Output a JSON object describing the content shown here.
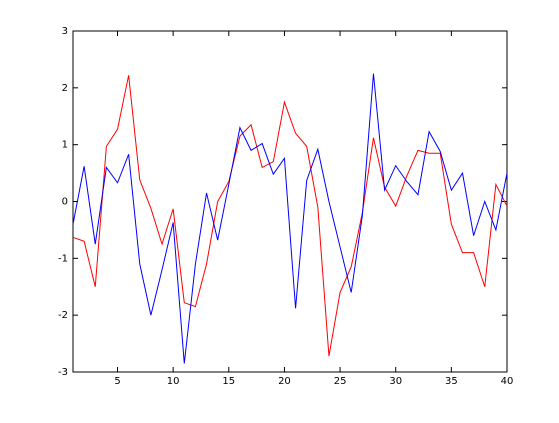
{
  "chart_data": {
    "type": "line",
    "x": [
      1,
      2,
      3,
      4,
      5,
      6,
      7,
      8,
      9,
      10,
      11,
      12,
      13,
      14,
      15,
      16,
      17,
      18,
      19,
      20,
      21,
      22,
      23,
      24,
      25,
      26,
      27,
      28,
      29,
      30,
      31,
      32,
      33,
      34,
      35,
      36,
      37,
      38,
      39,
      40
    ],
    "series": [
      {
        "color": "#ff0000",
        "values": [
          -0.63,
          -0.7,
          -1.5,
          0.97,
          1.27,
          2.22,
          0.38,
          -0.12,
          -0.75,
          -0.13,
          -1.78,
          -1.85,
          -1.1,
          0.0,
          0.35,
          1.15,
          1.35,
          0.6,
          0.7,
          1.75,
          1.2,
          0.97,
          -0.1,
          -2.72,
          -1.6,
          -1.15,
          -0.2,
          1.12,
          0.25,
          -0.08,
          0.45,
          0.9,
          0.85,
          0.85,
          -0.4,
          -0.9,
          -0.9,
          -1.5,
          0.3,
          -0.08
        ]
      },
      {
        "color": "#0000ff",
        "values": [
          -0.4,
          0.62,
          -0.75,
          0.6,
          0.33,
          0.83,
          -1.1,
          -2.0,
          -1.2,
          -0.37,
          -2.85,
          -1.1,
          0.15,
          -0.68,
          0.3,
          1.3,
          0.9,
          1.02,
          0.48,
          0.76,
          -1.88,
          0.37,
          0.92,
          0.0,
          -0.8,
          -1.6,
          -0.25,
          2.25,
          0.2,
          0.63,
          0.35,
          0.12,
          1.23,
          0.88,
          0.2,
          0.5,
          -0.6,
          0.0,
          -0.5,
          0.5
        ]
      }
    ],
    "xlim": [
      1,
      40
    ],
    "xticks": [
      5,
      10,
      15,
      20,
      25,
      30,
      35,
      40
    ],
    "ylim": [
      -3,
      3
    ],
    "yticks": [
      -3,
      -2,
      -1,
      0,
      1,
      2,
      3
    ]
  }
}
